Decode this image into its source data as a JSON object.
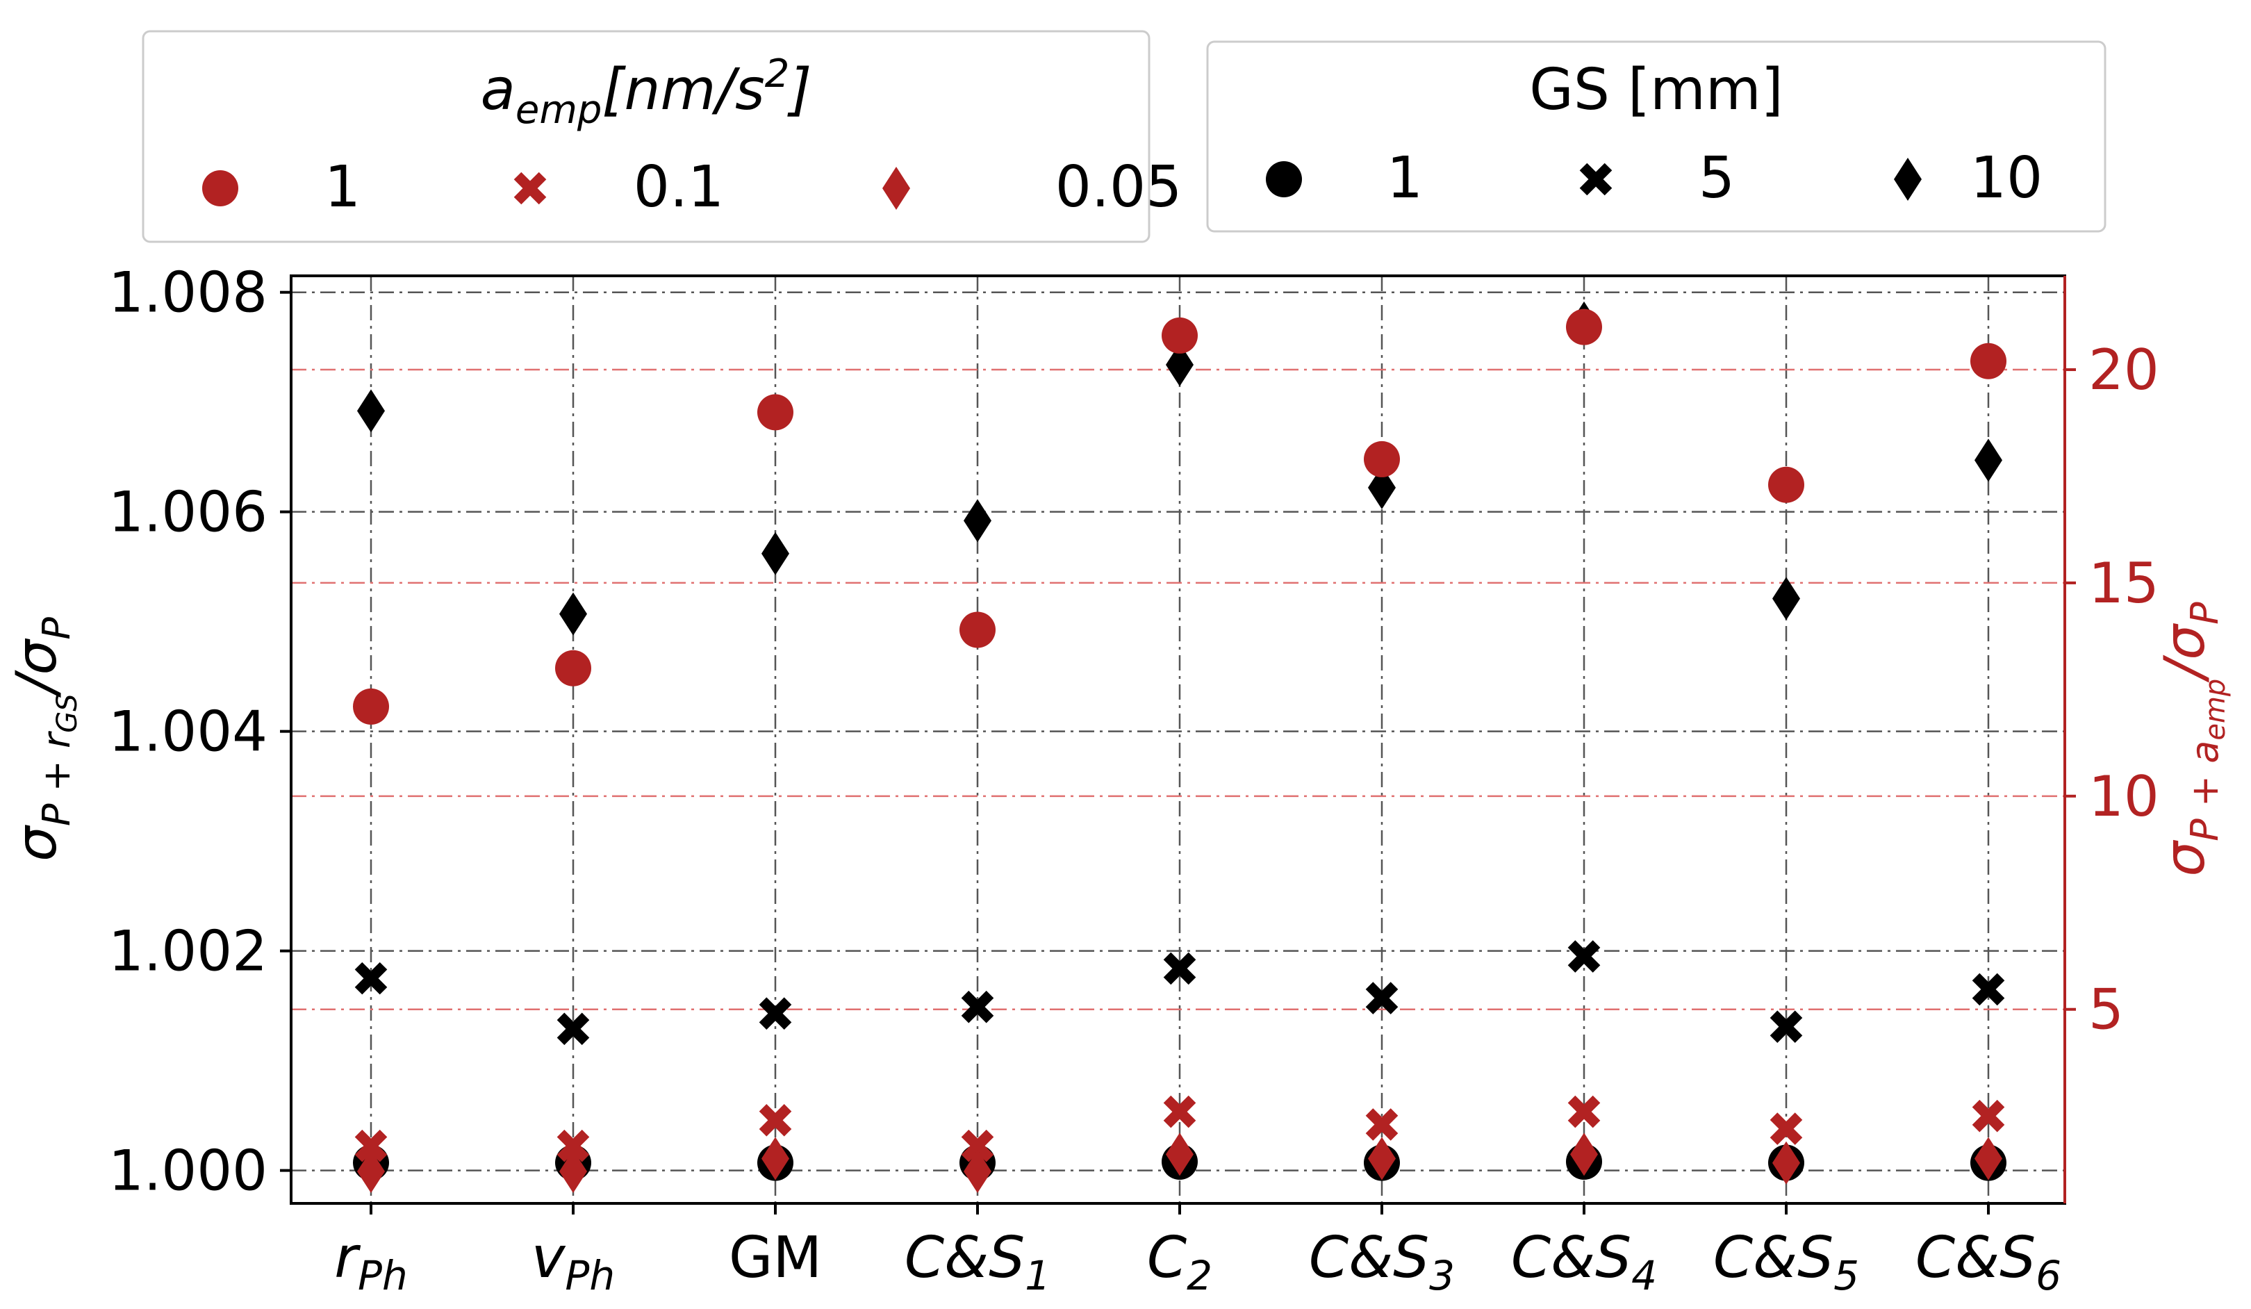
{
  "chart_data": {
    "type": "scatter",
    "categories": [
      "rPh",
      "vPh",
      "GM",
      "C&S1",
      "C2",
      "C&S3",
      "C&S4",
      "C&S5",
      "C&S6"
    ],
    "category_labels": [
      {
        "base": "r",
        "sub": "Ph",
        "italic": true
      },
      {
        "base": "v",
        "sub": "Ph",
        "italic": true
      },
      {
        "base": "GM",
        "sub": "",
        "italic": false
      },
      {
        "base": "C&S",
        "sub": "1",
        "italic": true
      },
      {
        "base": "C",
        "sub": "2",
        "italic": true
      },
      {
        "base": "C&S",
        "sub": "3",
        "italic": true
      },
      {
        "base": "C&S",
        "sub": "4",
        "italic": true
      },
      {
        "base": "C&S",
        "sub": "5",
        "italic": true
      },
      {
        "base": "C&S",
        "sub": "6",
        "italic": true
      }
    ],
    "left_axis": {
      "label": "σP+rGS/σP",
      "label_parts": {
        "base": "σ",
        "sub1": "P + r",
        "sub2": "GS",
        "mid": "/σ",
        "sub3": "P"
      },
      "ylim": [
        0.9997,
        1.00815
      ],
      "ticks": [
        1.0,
        1.002,
        1.004,
        1.006,
        1.008
      ],
      "tick_labels": [
        "1.000",
        "1.002",
        "1.004",
        "1.006",
        "1.008"
      ],
      "grid": true
    },
    "right_axis": {
      "label": "σP+aemp/σP",
      "label_parts": {
        "base": "σ",
        "sub1": "P + a",
        "sub2": "emp",
        "mid": "/σ",
        "sub3": "P"
      },
      "ylim": [
        0.45,
        22.2
      ],
      "ticks": [
        5,
        10,
        15,
        20
      ],
      "tick_labels": [
        "5",
        "10",
        "15",
        "20"
      ],
      "grid": true,
      "color": "#b22222"
    },
    "series": [
      {
        "name": "GS 1 mm",
        "axis": "left",
        "marker": "circle",
        "color": "#000000",
        "values": [
          1.00007,
          1.00007,
          1.00007,
          1.00007,
          1.00008,
          1.00007,
          1.00008,
          1.00007,
          1.00007
        ]
      },
      {
        "name": "GS 5 mm",
        "axis": "left",
        "marker": "x",
        "color": "#000000",
        "values": [
          1.00175,
          1.00129,
          1.00143,
          1.00149,
          1.00184,
          1.00157,
          1.00195,
          1.00131,
          1.00165
        ]
      },
      {
        "name": "GS 10 mm",
        "axis": "left",
        "marker": "diamond",
        "color": "#000000",
        "values": [
          1.00692,
          1.00507,
          1.00562,
          1.00592,
          1.00734,
          1.00622,
          1.00772,
          1.00521,
          1.00647
        ]
      },
      {
        "name": "aemp 1",
        "axis": "right",
        "marker": "circle",
        "color": "#b22222",
        "values": [
          12.1,
          13.0,
          19.0,
          13.9,
          20.8,
          17.9,
          21.0,
          17.3,
          20.2
        ]
      },
      {
        "name": "aemp 0.1",
        "axis": "right",
        "marker": "x",
        "color": "#b22222",
        "values": [
          1.8,
          1.8,
          2.4,
          1.8,
          2.6,
          2.3,
          2.6,
          2.2,
          2.5
        ]
      },
      {
        "name": "aemp 0.05",
        "axis": "right",
        "marker": "diamond",
        "color": "#b22222",
        "values": [
          1.2,
          1.2,
          1.5,
          1.2,
          1.6,
          1.5,
          1.6,
          1.4,
          1.5
        ]
      }
    ],
    "legends": [
      {
        "title": "aemp[nm/s²]",
        "title_parts": {
          "base": "a",
          "sub": "emp",
          "rest": "[nm/s",
          "sup": "2",
          "end": "]"
        },
        "placement": "top-left",
        "entries": [
          {
            "label": "1",
            "marker": "circle",
            "color": "#b22222"
          },
          {
            "label": "0.1",
            "marker": "x",
            "color": "#b22222"
          },
          {
            "label": "0.05",
            "marker": "diamond",
            "color": "#b22222"
          }
        ]
      },
      {
        "title": "GS [mm]",
        "placement": "top-right",
        "entries": [
          {
            "label": "1",
            "marker": "circle",
            "color": "#000000"
          },
          {
            "label": "5",
            "marker": "x",
            "color": "#000000"
          },
          {
            "label": "10",
            "marker": "diamond",
            "color": "#000000"
          }
        ]
      }
    ]
  }
}
